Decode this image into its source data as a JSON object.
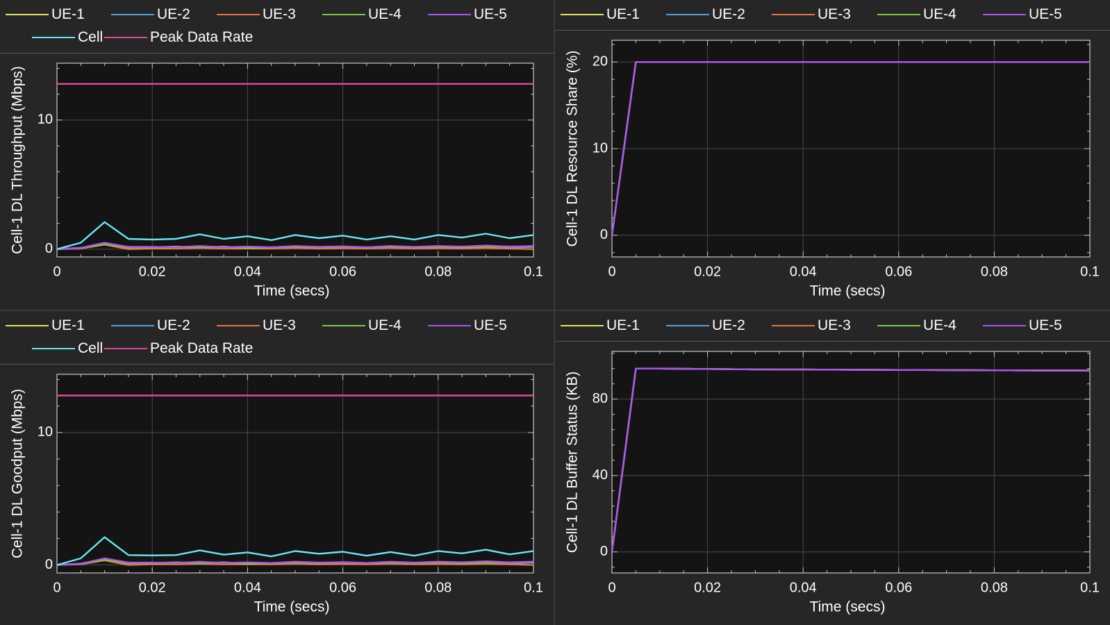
{
  "charts_meta": {
    "colors": {
      "UE-1": "#e6e65a",
      "UE-2": "#4ea3e6",
      "UE-3": "#e6763a",
      "UE-4": "#7ecb3a",
      "UE-5": "#a855f7",
      "Cell": "#66e8f2",
      "Peak Data Rate": "#e8469a"
    }
  },
  "chart_data": [
    {
      "type": "line",
      "ylabel": "Cell-1 DL Throughput (Mbps)",
      "xlabel": "Time (secs)",
      "xlim": [
        0,
        0.1
      ],
      "ylim": [
        -0.6,
        14.4
      ],
      "xticks": [
        0,
        0.02,
        0.04,
        0.06,
        0.08,
        0.1
      ],
      "xtick_labels": [
        "0",
        "0.02",
        "0.04",
        "0.06",
        "0.08",
        "0.1"
      ],
      "yticks": [
        0,
        10
      ],
      "ytick_labels": [
        "0",
        "10"
      ],
      "grid": true,
      "legend_position": "top",
      "legend": [
        "UE-1",
        "UE-2",
        "UE-3",
        "UE-4",
        "UE-5",
        "Cell",
        "Peak Data Rate"
      ],
      "x": [
        0,
        0.005,
        0.01,
        0.015,
        0.02,
        0.025,
        0.03,
        0.035,
        0.04,
        0.045,
        0.05,
        0.055,
        0.06,
        0.065,
        0.07,
        0.075,
        0.08,
        0.085,
        0.09,
        0.095,
        0.1
      ],
      "series": [
        {
          "name": "UE-1",
          "values": [
            0,
            0.1,
            0.45,
            0.12,
            0.15,
            0.12,
            0.2,
            0.1,
            0.15,
            0.12,
            0.2,
            0.12,
            0.18,
            0.12,
            0.2,
            0.12,
            0.2,
            0.15,
            0.22,
            0.15,
            0.2
          ]
        },
        {
          "name": "UE-2",
          "values": [
            0,
            0.08,
            0.4,
            0.1,
            0.12,
            0.1,
            0.18,
            0.08,
            0.12,
            0.1,
            0.15,
            0.1,
            0.15,
            0.1,
            0.18,
            0.1,
            0.16,
            0.12,
            0.2,
            0.12,
            0.18
          ]
        },
        {
          "name": "UE-3",
          "values": [
            0,
            0.05,
            0.35,
            0.0,
            0.05,
            0.05,
            0.1,
            0.05,
            0.05,
            0.05,
            0.1,
            0.05,
            0.08,
            0.05,
            0.1,
            0.05,
            0.08,
            0.05,
            0.1,
            0.05,
            0.0
          ]
        },
        {
          "name": "UE-4",
          "values": [
            0,
            0.1,
            0.4,
            0.15,
            0.15,
            0.2,
            0.15,
            0.2,
            0.1,
            0.15,
            0.2,
            0.15,
            0.2,
            0.15,
            0.2,
            0.15,
            0.2,
            0.15,
            0.2,
            0.2,
            0.2
          ]
        },
        {
          "name": "UE-5",
          "values": [
            0,
            0.1,
            0.5,
            0.18,
            0.18,
            0.15,
            0.25,
            0.15,
            0.2,
            0.15,
            0.25,
            0.18,
            0.22,
            0.15,
            0.25,
            0.18,
            0.25,
            0.2,
            0.28,
            0.2,
            0.25
          ]
        },
        {
          "name": "Cell",
          "values": [
            0,
            0.5,
            2.1,
            0.8,
            0.75,
            0.8,
            1.15,
            0.8,
            1.0,
            0.7,
            1.1,
            0.85,
            1.05,
            0.75,
            1.0,
            0.75,
            1.1,
            0.9,
            1.2,
            0.85,
            1.1
          ]
        },
        {
          "name": "Peak Data Rate",
          "values": [
            12.8,
            12.8,
            12.8,
            12.8,
            12.8,
            12.8,
            12.8,
            12.8,
            12.8,
            12.8,
            12.8,
            12.8,
            12.8,
            12.8,
            12.8,
            12.8,
            12.8,
            12.8,
            12.8,
            12.8,
            12.8
          ]
        }
      ]
    },
    {
      "type": "line",
      "ylabel": "Cell-1 DL Resource Share (%)",
      "xlabel": "Time (secs)",
      "xlim": [
        0,
        0.1
      ],
      "ylim": [
        -2.5,
        22.5
      ],
      "xticks": [
        0,
        0.02,
        0.04,
        0.06,
        0.08,
        0.1
      ],
      "xtick_labels": [
        "0",
        "0.02",
        "0.04",
        "0.06",
        "0.08",
        "0.1"
      ],
      "yticks": [
        0,
        10,
        20
      ],
      "ytick_labels": [
        "0",
        "10",
        "20"
      ],
      "grid": true,
      "legend_position": "top",
      "legend": [
        "UE-1",
        "UE-2",
        "UE-3",
        "UE-4",
        "UE-5"
      ],
      "x": [
        0,
        0.005,
        0.01,
        0.02,
        0.03,
        0.04,
        0.05,
        0.06,
        0.07,
        0.08,
        0.09,
        0.1
      ],
      "series": [
        {
          "name": "UE-1",
          "values": [
            0,
            20,
            20,
            20,
            20,
            20,
            20,
            20,
            20,
            20,
            20,
            20
          ]
        },
        {
          "name": "UE-2",
          "values": [
            0,
            20,
            20,
            20,
            20,
            20,
            20,
            20,
            20,
            20,
            20,
            20
          ]
        },
        {
          "name": "UE-3",
          "values": [
            0,
            20,
            20,
            20,
            20,
            20,
            20,
            20,
            20,
            20,
            20,
            20
          ]
        },
        {
          "name": "UE-4",
          "values": [
            0,
            20,
            20,
            20,
            20,
            20,
            20,
            20,
            20,
            20,
            20,
            20
          ]
        },
        {
          "name": "UE-5",
          "values": [
            0,
            20,
            20,
            20,
            20,
            20,
            20,
            20,
            20,
            20,
            20,
            20
          ]
        }
      ]
    },
    {
      "type": "line",
      "ylabel": "Cell-1 DL Goodput (Mbps)",
      "xlabel": "Time (secs)",
      "xlim": [
        0,
        0.1
      ],
      "ylim": [
        -0.6,
        14.4
      ],
      "xticks": [
        0,
        0.02,
        0.04,
        0.06,
        0.08,
        0.1
      ],
      "xtick_labels": [
        "0",
        "0.02",
        "0.04",
        "0.06",
        "0.08",
        "0.1"
      ],
      "yticks": [
        0,
        10
      ],
      "ytick_labels": [
        "0",
        "10"
      ],
      "grid": true,
      "legend_position": "top",
      "legend": [
        "UE-1",
        "UE-2",
        "UE-3",
        "UE-4",
        "UE-5",
        "Cell",
        "Peak Data Rate"
      ],
      "x": [
        0,
        0.005,
        0.01,
        0.015,
        0.02,
        0.025,
        0.03,
        0.035,
        0.04,
        0.045,
        0.05,
        0.055,
        0.06,
        0.065,
        0.07,
        0.075,
        0.08,
        0.085,
        0.09,
        0.095,
        0.1
      ],
      "series": [
        {
          "name": "UE-1",
          "values": [
            0,
            0.1,
            0.45,
            0.12,
            0.15,
            0.12,
            0.2,
            0.1,
            0.15,
            0.12,
            0.2,
            0.12,
            0.18,
            0.12,
            0.2,
            0.12,
            0.2,
            0.15,
            0.22,
            0.15,
            0.2
          ]
        },
        {
          "name": "UE-2",
          "values": [
            0,
            0.08,
            0.4,
            0.1,
            0.12,
            0.1,
            0.18,
            0.08,
            0.12,
            0.1,
            0.15,
            0.1,
            0.15,
            0.1,
            0.18,
            0.1,
            0.16,
            0.12,
            0.2,
            0.12,
            0.18
          ]
        },
        {
          "name": "UE-3",
          "values": [
            0,
            0.05,
            0.35,
            0.0,
            0.05,
            0.05,
            0.1,
            0.05,
            0.05,
            0.05,
            0.1,
            0.05,
            0.08,
            0.05,
            0.1,
            0.05,
            0.08,
            0.05,
            0.1,
            0.05,
            0.0
          ]
        },
        {
          "name": "UE-4",
          "values": [
            0,
            0.1,
            0.4,
            0.15,
            0.15,
            0.2,
            0.15,
            0.2,
            0.1,
            0.15,
            0.2,
            0.15,
            0.2,
            0.15,
            0.2,
            0.15,
            0.2,
            0.15,
            0.2,
            0.2,
            0.2
          ]
        },
        {
          "name": "UE-5",
          "values": [
            0,
            0.1,
            0.5,
            0.18,
            0.18,
            0.15,
            0.25,
            0.15,
            0.2,
            0.15,
            0.25,
            0.18,
            0.22,
            0.15,
            0.25,
            0.18,
            0.25,
            0.2,
            0.28,
            0.2,
            0.25
          ]
        },
        {
          "name": "Cell",
          "values": [
            0,
            0.5,
            2.1,
            0.75,
            0.72,
            0.75,
            1.1,
            0.78,
            0.95,
            0.65,
            1.05,
            0.85,
            1.0,
            0.7,
            0.98,
            0.7,
            1.05,
            0.88,
            1.15,
            0.8,
            1.05
          ]
        },
        {
          "name": "Peak Data Rate",
          "values": [
            12.8,
            12.8,
            12.8,
            12.8,
            12.8,
            12.8,
            12.8,
            12.8,
            12.8,
            12.8,
            12.8,
            12.8,
            12.8,
            12.8,
            12.8,
            12.8,
            12.8,
            12.8,
            12.8,
            12.8,
            12.8
          ]
        }
      ]
    },
    {
      "type": "line",
      "ylabel": "Cell-1 DL Buffer Status (KB)",
      "xlabel": "Time (secs)",
      "xlim": [
        0,
        0.1
      ],
      "ylim": [
        -11,
        105
      ],
      "xticks": [
        0,
        0.02,
        0.04,
        0.06,
        0.08,
        0.1
      ],
      "xtick_labels": [
        "0",
        "0.02",
        "0.04",
        "0.06",
        "0.08",
        "0.1"
      ],
      "yticks": [
        0,
        40,
        80
      ],
      "ytick_labels": [
        "0",
        "40",
        "80"
      ],
      "grid": true,
      "legend_position": "top",
      "legend": [
        "UE-1",
        "UE-2",
        "UE-3",
        "UE-4",
        "UE-5"
      ],
      "x": [
        0,
        0.005,
        0.01,
        0.02,
        0.03,
        0.04,
        0.05,
        0.06,
        0.07,
        0.08,
        0.09,
        0.1
      ],
      "series": [
        {
          "name": "UE-1",
          "values": [
            0,
            96,
            96,
            95.8,
            95.6,
            95.5,
            95.4,
            95.3,
            95.2,
            95.1,
            95.0,
            95.0
          ]
        },
        {
          "name": "UE-2",
          "values": [
            0,
            96,
            96,
            95.8,
            95.6,
            95.5,
            95.4,
            95.3,
            95.2,
            95.1,
            95.0,
            95.0
          ]
        },
        {
          "name": "UE-3",
          "values": [
            0,
            96,
            96,
            95.8,
            95.6,
            95.5,
            95.4,
            95.3,
            95.2,
            95.1,
            95.0,
            95.0
          ]
        },
        {
          "name": "UE-4",
          "values": [
            0,
            96,
            96,
            95.8,
            95.6,
            95.5,
            95.4,
            95.3,
            95.2,
            95.1,
            95.0,
            95.0
          ]
        },
        {
          "name": "UE-5",
          "values": [
            0,
            96,
            96,
            95.8,
            95.6,
            95.5,
            95.4,
            95.3,
            95.2,
            95.1,
            95.0,
            95.0
          ]
        }
      ]
    }
  ]
}
